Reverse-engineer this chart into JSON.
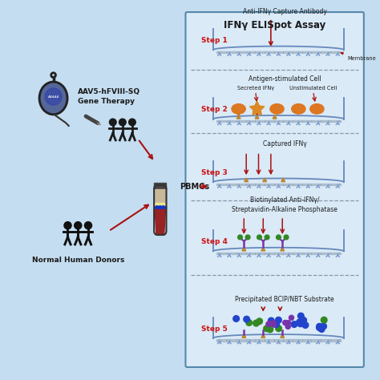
{
  "bg_color": "#c5ddf0",
  "box_bg": "#daeaf7",
  "box_border": "#5588aa",
  "title": "IFNγ ELISpot Assay",
  "step_color": "#cc1111",
  "arrow_color": "#aa1111",
  "text_color": "#1a1a1a",
  "step_labels": [
    "Step 1",
    "Step 2",
    "Step 3",
    "Step 4",
    "Step 5"
  ],
  "step_titles": [
    "Anti-IFNγ Capture Antibody",
    "Antigen-stimulated Cell",
    "Captured IFNγ",
    "Biotinylated Anti-IFNγ/\nStreptavidin-Alkaline Phosphatase",
    "Precipitated BCIP/NBT Substrate"
  ],
  "membrane_label": "Membrane",
  "secreted_label": "Secreted IFNγ",
  "unstimulated_label": "Unstimulated Cell",
  "pbmc_label": "PBMCs",
  "aav_label": "AAV5-hFVIII-SQ\nGene Therapy",
  "donor_label": "Normal Human Donors",
  "well_wall_color": "#6688bb",
  "antibody_color": "#7799cc",
  "membrane_color": "#aabbcc",
  "triangle_color": "#bb8833",
  "purple_color": "#7733aa",
  "green_color": "#338822",
  "blue_color": "#2244cc",
  "orange_color": "#dd7722"
}
